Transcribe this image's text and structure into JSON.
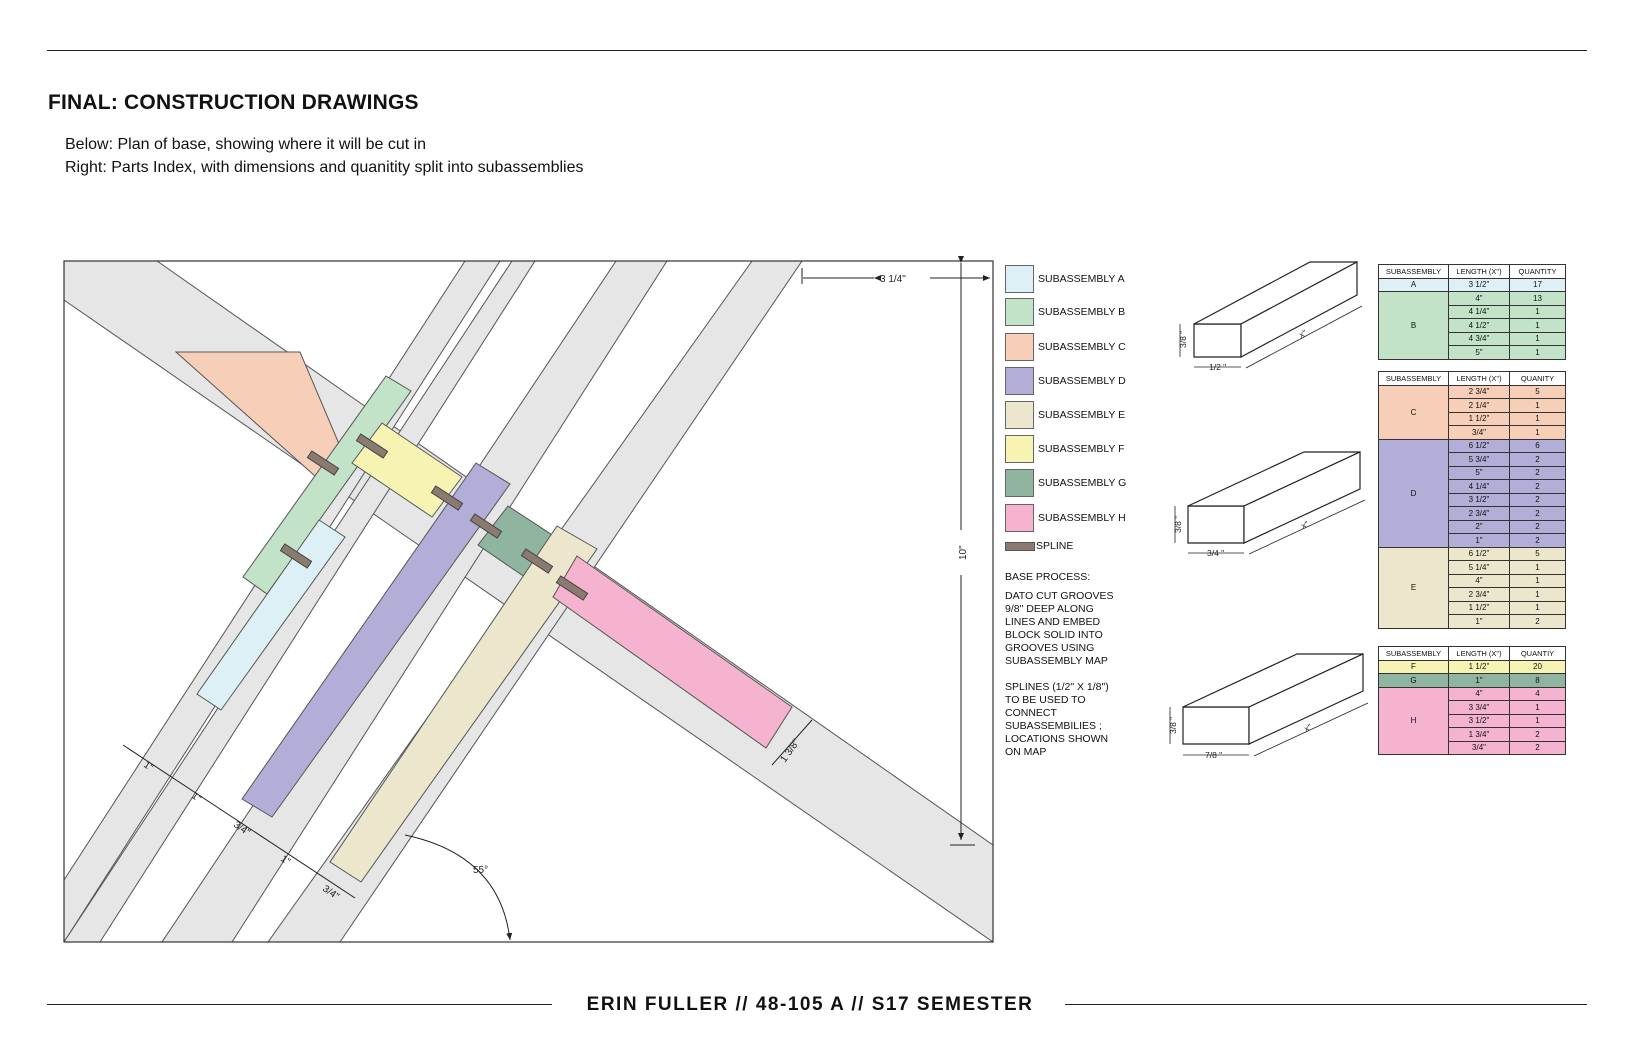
{
  "header": {
    "title": "FINAL: CONSTRUCTION DRAWINGS",
    "line1": "Below: Plan of base, showing where it will be cut in",
    "line2": "Right: Parts  Index, with dimensions and quanitity split into  subassemblies"
  },
  "footer": "ERIN FULLER // 48-105 A // S17 SEMESTER",
  "colors": {
    "A": "#dcf0f5",
    "B": "#c3e3c8",
    "C": "#f7cfb8",
    "D": "#b3aed8",
    "E": "#ece6cc",
    "F": "#f7f4b3",
    "G": "#8fb4a0",
    "H": "#f5b3cf",
    "spline": "#8b7a70",
    "base": "#e6e6e6"
  },
  "plan": {
    "dims": {
      "top": "3 1/4\"",
      "right": "10\"",
      "right_diag": "1 3/8\"",
      "d1": "1\"",
      "d2": "1\"",
      "d3": "3/4\"",
      "d4": "1\"",
      "d5": "3/4\"",
      "angle": "55°"
    }
  },
  "legend": {
    "items": [
      {
        "key": "A",
        "label": "SUBASSEMBLY A"
      },
      {
        "key": "B",
        "label": "SUBASSEMBLY B"
      },
      {
        "key": "C",
        "label": "SUBASSEMBLY C"
      },
      {
        "key": "D",
        "label": "SUBASSEMBLY D"
      },
      {
        "key": "E",
        "label": "SUBASSEMBLY E"
      },
      {
        "key": "F",
        "label": "SUBASSEMBLY F"
      },
      {
        "key": "G",
        "label": "SUBASSEMBLY G"
      },
      {
        "key": "H",
        "label": "SUBASSEMBLY H"
      }
    ],
    "spline_label": "SPLINE"
  },
  "process": {
    "heading": "BASE PROCESS:",
    "steps": "DATO CUT GROOVES 9/8\" DEEP ALONG LINES AND EMBED BLOCK SOLID INTO GROOVES USING SUBASSEMBLY MAP",
    "splines": "SPLINES (1/2\" X 1/8\") TO BE USED TO CONNECT SUBASSEMBILIES ; LOCATIONS SHOWN ON MAP"
  },
  "blocks": [
    {
      "height": "3/8 \"",
      "width": "1/2 \"",
      "length": "x\""
    },
    {
      "height": "3/8 \"",
      "width": "3/4 \"",
      "length": "x\""
    },
    {
      "height": "3/8 \"",
      "width": "7/8 \"",
      "length": "x\""
    }
  ],
  "tables": [
    {
      "headers": [
        "SUBASSEMBLY",
        "LENGTH (X\")",
        "QUANTITY"
      ],
      "groups": [
        {
          "name": "A",
          "color": "#dcf0f5",
          "rows": [
            [
              "3 1/2\"",
              "17"
            ]
          ]
        },
        {
          "name": "B",
          "color": "#c3e3c8",
          "rows": [
            [
              "4\"",
              "13"
            ],
            [
              "4 1/4\"",
              "1"
            ],
            [
              "4 1/2\"",
              "1"
            ],
            [
              "4 3/4\"",
              "1"
            ],
            [
              "5\"",
              "1"
            ]
          ]
        }
      ]
    },
    {
      "headers": [
        "SUBASSEMBLY",
        "LENGTH (X\")",
        "QUANITY"
      ],
      "groups": [
        {
          "name": "C",
          "color": "#f7cfb8",
          "rows": [
            [
              "2  3/4\"",
              "5"
            ],
            [
              "2  1/4\"",
              "1"
            ],
            [
              "1  1/2\"",
              "1"
            ],
            [
              "3/4\"",
              "1"
            ]
          ]
        },
        {
          "name": "D",
          "color": "#b3aed8",
          "rows": [
            [
              "6  1/2\"",
              "6"
            ],
            [
              "5 3/4\"",
              "2"
            ],
            [
              "5\"",
              "2"
            ],
            [
              "4  1/4\"",
              "2"
            ],
            [
              "3  1/2\"",
              "2"
            ],
            [
              "2 3/4\"",
              "2"
            ],
            [
              "2\"",
              "2"
            ],
            [
              "1\"",
              "2"
            ]
          ]
        },
        {
          "name": "E",
          "color": "#ece6cc",
          "rows": [
            [
              "6  1/2\"",
              "5"
            ],
            [
              "5  1/4\"",
              "1"
            ],
            [
              "4\"",
              "1"
            ],
            [
              "2  3/4\"",
              "1"
            ],
            [
              "1  1/2\"",
              "1"
            ],
            [
              "1\"",
              "2"
            ]
          ]
        }
      ]
    },
    {
      "headers": [
        "SUBASSEMBLY",
        "LENGTH (X\")",
        "QUANTIY"
      ],
      "groups": [
        {
          "name": "F",
          "color": "#f7f4b3",
          "rows": [
            [
              "1  1/2\"",
              "20"
            ]
          ]
        },
        {
          "name": "G",
          "color": "#8fb4a0",
          "rows": [
            [
              "1\"",
              "8"
            ]
          ]
        },
        {
          "name": "H",
          "color": "#f5b3cf",
          "rows": [
            [
              "4\"",
              "4"
            ],
            [
              "3  3/4\"",
              "1"
            ],
            [
              "3  1/2\"",
              "1"
            ],
            [
              "1  3/4\"",
              "2"
            ],
            [
              "3/4\"",
              "2"
            ]
          ]
        }
      ]
    }
  ]
}
